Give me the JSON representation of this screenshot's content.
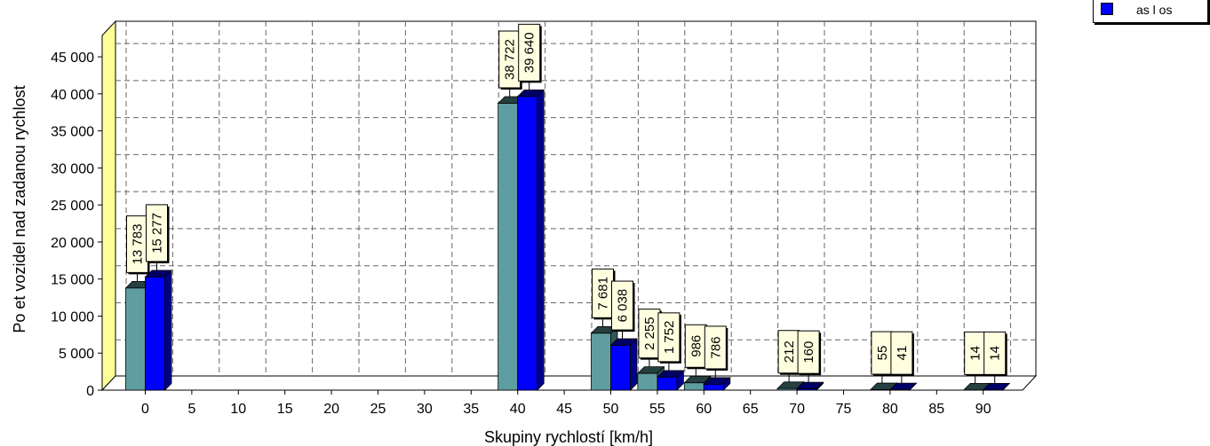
{
  "chart_data": {
    "type": "bar",
    "xlabel": "Skupiny rychlostí [km/h]",
    "ylabel": "Po  et vozidel nad zadanou rychlost",
    "ylim": [
      0,
      48000
    ],
    "yticks": [
      "0",
      "5 000",
      "10 000",
      "15 000",
      "20 000",
      "25 000",
      "30 000",
      "35 000",
      "40 000",
      "45 000"
    ],
    "categories": [
      "0",
      "5",
      "10",
      "15",
      "20",
      "25",
      "30",
      "35",
      "40",
      "45",
      "50",
      "55",
      "60",
      "65",
      "70",
      "75",
      "80",
      "85",
      "90"
    ],
    "grid": true,
    "legend_position": "top-right",
    "series": [
      {
        "color": "#5f9ea0",
        "values": [
          13783,
          null,
          null,
          null,
          null,
          null,
          null,
          null,
          38722,
          null,
          7681,
          2255,
          986,
          null,
          212,
          null,
          55,
          null,
          14
        ],
        "labels": [
          "13 783",
          "",
          "",
          "",
          "",
          "",
          "",
          "",
          "38 722",
          "",
          "7 681",
          "2 255",
          "986",
          "",
          "212",
          "",
          "55",
          "",
          "14"
        ]
      },
      {
        "name": "as  l os",
        "color": "#0000ff",
        "values": [
          15277,
          null,
          null,
          null,
          null,
          null,
          null,
          null,
          39640,
          null,
          6038,
          1752,
          786,
          null,
          160,
          null,
          41,
          null,
          14
        ],
        "labels": [
          "15 277",
          "",
          "",
          "",
          "",
          "",
          "",
          "",
          "39 640",
          "",
          "6 038",
          "1 752",
          "786",
          "",
          "160",
          "",
          "41",
          "",
          "14"
        ]
      }
    ]
  },
  "legend": {
    "label": "as  l os",
    "swatch_color": "#0000ff"
  }
}
